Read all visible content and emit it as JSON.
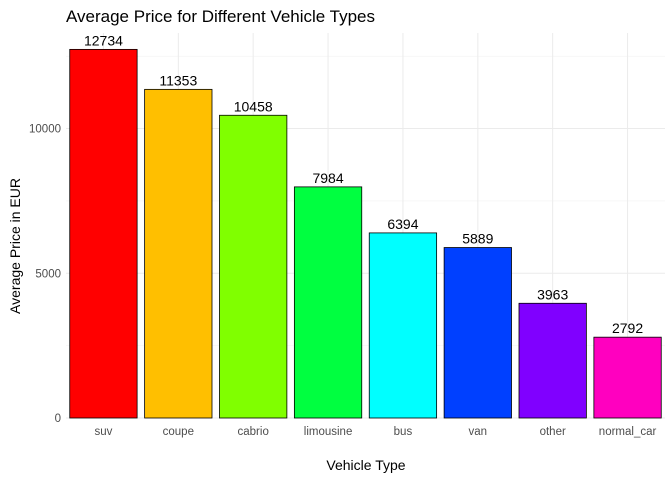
{
  "chart_data": {
    "type": "bar",
    "title": "Average Price for Different Vehicle Types",
    "xlabel": "Vehicle Type",
    "ylabel": "Average Price in EUR",
    "categories": [
      "suv",
      "coupe",
      "cabrio",
      "limousine",
      "bus",
      "van",
      "other",
      "normal_car"
    ],
    "values": [
      12734,
      11353,
      10458,
      7984,
      6394,
      5889,
      3963,
      2792
    ],
    "colors": [
      "#FF0000",
      "#FFBF00",
      "#80FF00",
      "#00FF40",
      "#00FFFF",
      "#0040FF",
      "#8000FF",
      "#FF00BF"
    ],
    "yticks": [
      0,
      5000,
      10000
    ],
    "ylim": [
      0,
      13300
    ],
    "grid": true,
    "legend": "none"
  }
}
